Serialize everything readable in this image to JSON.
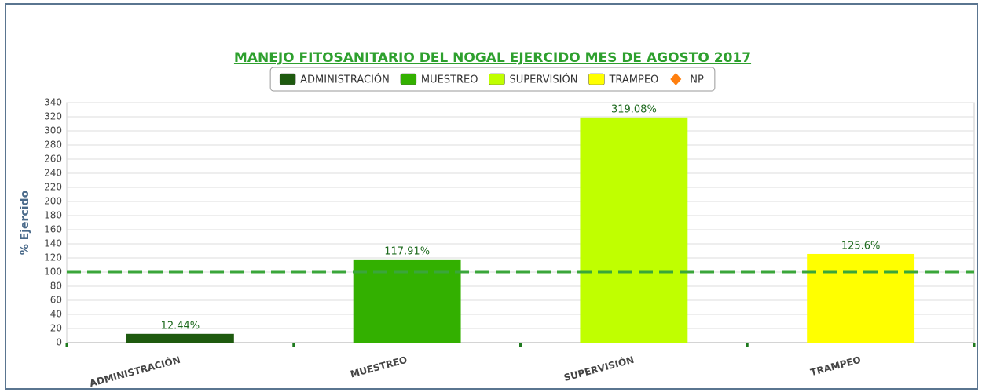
{
  "chart_data": {
    "type": "bar",
    "title": "MANEJO FITOSANITARIO DEL NOGAL EJERCIDO MES DE AGOSTO 2017",
    "y_label": "% Ejercido",
    "categories": [
      "ADMINISTRACIÓN",
      "MUESTREO",
      "SUPERVISIÓN",
      "TRAMPEO"
    ],
    "values": [
      12.44,
      117.91,
      319.08,
      125.6
    ],
    "value_labels": [
      "12.44%",
      "117.91%",
      "319.08%",
      "125.6%"
    ],
    "colors": [
      "#1e5a0f",
      "#33b000",
      "#c0ff00",
      "#ffff00"
    ],
    "legend": [
      {
        "name": "ADMINISTRACIÓN",
        "color": "#1e5a0f",
        "symbol": "square"
      },
      {
        "name": "MUESTREO",
        "color": "#33b000",
        "symbol": "square"
      },
      {
        "name": "SUPERVISIÓN",
        "color": "#c0ff00",
        "symbol": "square"
      },
      {
        "name": "TRAMPEO",
        "color": "#ffff00",
        "symbol": "square"
      },
      {
        "name": "NP",
        "color": "#ff7f0e",
        "symbol": "diamond"
      }
    ],
    "reference_line": 100,
    "ylim": [
      0,
      340
    ],
    "yticks": [
      0,
      20,
      40,
      60,
      80,
      100,
      120,
      140,
      160,
      180,
      200,
      220,
      240,
      260,
      280,
      300,
      320,
      340
    ],
    "grid": true
  }
}
